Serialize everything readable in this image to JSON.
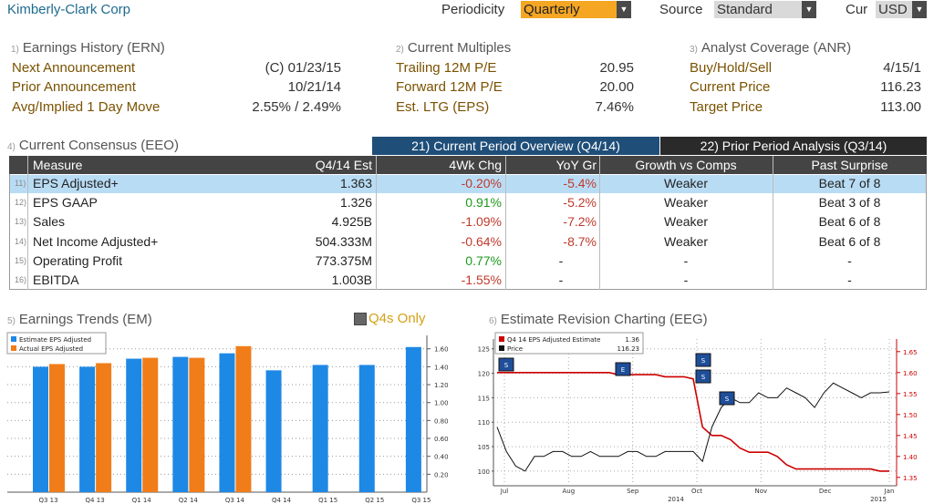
{
  "header": {
    "company": "Kimberly-Clark Corp",
    "periodicity_label": "Periodicity",
    "periodicity_value": "Quarterly",
    "source_label": "Source",
    "source_value": "Standard",
    "cur_label": "Cur",
    "cur_value": "USD"
  },
  "earnings_history": {
    "num": "1)",
    "title": "Earnings History (ERN)",
    "rows": [
      {
        "label": "Next Announcement",
        "value": "(C)  01/23/15"
      },
      {
        "label": "Prior Announcement",
        "value": "10/21/14"
      },
      {
        "label": "Avg/Implied 1 Day Move",
        "value": "2.55% / 2.49%"
      }
    ]
  },
  "current_multiples": {
    "num": "2)",
    "title": "Current Multiples",
    "rows": [
      {
        "label": "Trailing 12M P/E",
        "value": "20.95"
      },
      {
        "label": "Forward 12M P/E",
        "value": "20.00"
      },
      {
        "label": "Est. LTG (EPS)",
        "value": "7.46%"
      }
    ]
  },
  "analyst_coverage": {
    "num": "3)",
    "title": "Analyst Coverage (ANR)",
    "rows": [
      {
        "label": "Buy/Hold/Sell",
        "value": "4/15/1"
      },
      {
        "label": "Current Price",
        "value": "116.23"
      },
      {
        "label": "Target Price",
        "value": "113.00"
      }
    ]
  },
  "consensus": {
    "num": "4)",
    "title": "Current Consensus (EEO)",
    "tab_current": "21) Current Period Overview (Q4/14)",
    "tab_prior": "22) Prior Period Analysis (Q3/14)",
    "columns": [
      "Measure",
      "Q4/14 Est",
      "4Wk Chg",
      "YoY Gr",
      "Growth vs Comps",
      "Past Surprise"
    ],
    "rows": [
      {
        "num": "11)",
        "measure": "EPS Adjusted+",
        "est": "1.363",
        "chg": "-0.20%",
        "chg_dir": "neg",
        "yoy": "-5.4%",
        "comps": "Weaker",
        "surprise": "Beat 7 of 8"
      },
      {
        "num": "12)",
        "measure": "EPS GAAP",
        "est": "1.326",
        "chg": "0.91%",
        "chg_dir": "pos",
        "yoy": "-5.2%",
        "comps": "Weaker",
        "surprise": "Beat 3 of 8"
      },
      {
        "num": "13)",
        "measure": "Sales",
        "est": "4.925B",
        "chg": "-1.09%",
        "chg_dir": "neg",
        "yoy": "-7.2%",
        "comps": "Weaker",
        "surprise": "Beat 6 of 8"
      },
      {
        "num": "14)",
        "measure": "Net Income Adjusted+",
        "est": "504.333M",
        "chg": "-0.64%",
        "chg_dir": "neg",
        "yoy": "-8.7%",
        "comps": "Weaker",
        "surprise": "Beat 6 of 8"
      },
      {
        "num": "15)",
        "measure": "Operating Profit",
        "est": "773.375M",
        "chg": "0.77%",
        "chg_dir": "pos",
        "yoy": "-",
        "comps": "-",
        "surprise": "-"
      },
      {
        "num": "16)",
        "measure": "EBITDA",
        "est": "1.003B",
        "chg": "-1.55%",
        "chg_dir": "neg",
        "yoy": "-",
        "comps": "-",
        "surprise": "-"
      }
    ]
  },
  "earnings_trends": {
    "num": "5)",
    "title": "Earnings Trends (EM)",
    "checkbox_label": "Q4s Only"
  },
  "estimate_revision": {
    "num": "6)",
    "title": "Estimate Revision Charting (EEG)"
  },
  "chart_data": [
    {
      "type": "bar",
      "categories": [
        "Q3 13",
        "Q4 13",
        "Q1 14",
        "Q2 14",
        "Q3 14",
        "Q4 14",
        "Q1 15",
        "Q2 15",
        "Q3 15"
      ],
      "series": [
        {
          "name": "Estimate EPS Adjusted",
          "color": "#1e88e5",
          "values": [
            1.4,
            1.4,
            1.49,
            1.51,
            1.55,
            1.36,
            1.42,
            1.42,
            1.62
          ]
        },
        {
          "name": "Actual EPS Adjusted",
          "color": "#f07d1a",
          "values": [
            1.43,
            1.44,
            1.5,
            1.5,
            1.63,
            null,
            null,
            null,
            null
          ]
        }
      ],
      "yticks": [
        "1.60",
        "1.40",
        "1.20",
        "1.00",
        "0.80",
        "0.60",
        "0.40",
        "0.20"
      ],
      "ylim": [
        0,
        1.75
      ],
      "grid": true,
      "legend": "top-left"
    },
    {
      "type": "line",
      "x_labels": [
        "Jul",
        "Aug",
        "Sep",
        "Oct",
        "Nov",
        "Dec",
        "Jan"
      ],
      "year_labels": [
        "2014",
        "2015"
      ],
      "left_ticks": [
        "125",
        "120",
        "115",
        "110",
        "105",
        "100"
      ],
      "right_ticks": [
        "1.65",
        "1.60",
        "1.55",
        "1.50",
        "1.45",
        "1.40",
        "1.35"
      ],
      "left_lim": [
        97,
        127
      ],
      "right_lim": [
        1.33,
        1.68
      ],
      "series": [
        {
          "name": "Q4 14 EPS Adjusted Estimate",
          "last": "1.36",
          "color": "#cc0000",
          "axis": "right",
          "values": [
            1.6,
            1.6,
            1.6,
            1.6,
            1.6,
            1.6,
            1.6,
            1.6,
            1.6,
            1.6,
            1.6,
            1.6,
            1.6,
            1.595,
            1.595,
            1.595,
            1.595,
            1.595,
            1.59,
            1.59,
            1.59,
            1.585,
            1.47,
            1.45,
            1.45,
            1.44,
            1.42,
            1.41,
            1.41,
            1.41,
            1.4,
            1.38,
            1.37,
            1.37,
            1.37,
            1.37,
            1.37,
            1.37,
            1.37,
            1.37,
            1.37,
            1.365,
            1.365
          ]
        },
        {
          "name": "Price",
          "last": "116.23",
          "color": "#111111",
          "axis": "left",
          "values": [
            109,
            104,
            101,
            100,
            103,
            103,
            104,
            104,
            103,
            103,
            104,
            103,
            103,
            103,
            104,
            104,
            103,
            103,
            104,
            104,
            104,
            104,
            102,
            109,
            113,
            115,
            114,
            114,
            116,
            115,
            115,
            117,
            116,
            115,
            113,
            116,
            118,
            117,
            116,
            115,
            116,
            116,
            116.2
          ]
        }
      ],
      "revision_markers": [
        "S",
        "E",
        "S",
        "S",
        "S"
      ],
      "grid": true,
      "legend": "top-left"
    }
  ]
}
